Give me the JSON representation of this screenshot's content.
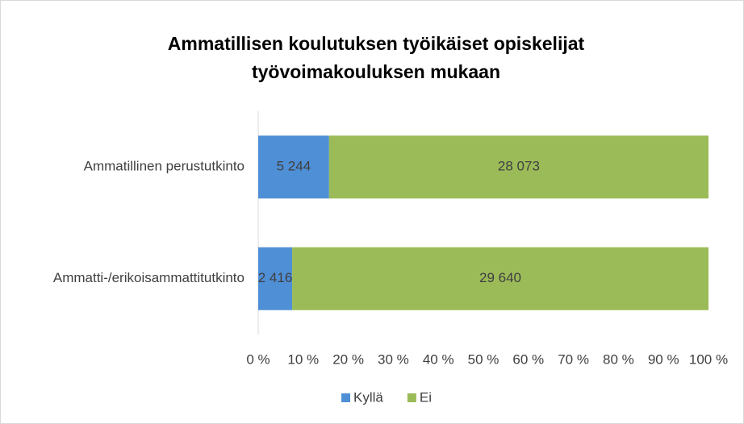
{
  "chart_data": {
    "type": "bar",
    "orientation": "horizontal",
    "stacked": "percent",
    "title": [
      "Ammatillisen koulutuksen työikäiset opiskelijat",
      "työvoimakouluksen mukaan"
    ],
    "categories": [
      "Ammatillinen perustutkinto",
      "Ammatti-/erikoisammattitutkinto"
    ],
    "series": [
      {
        "name": "Kyllä",
        "color": "#4f8fd6",
        "values": [
          5244,
          2416
        ],
        "value_labels": [
          "5 244",
          "2 416"
        ]
      },
      {
        "name": "Ei",
        "color": "#9bbb59",
        "values": [
          28073,
          29640
        ],
        "value_labels": [
          "28 073",
          "29 640"
        ]
      }
    ],
    "xlim": [
      0,
      100
    ],
    "xticks": [
      {
        "value": 0,
        "label": "0 %"
      },
      {
        "value": 10,
        "label": "10 %"
      },
      {
        "value": 20,
        "label": "20 %"
      },
      {
        "value": 30,
        "label": "30 %"
      },
      {
        "value": 40,
        "label": "40 %"
      },
      {
        "value": 50,
        "label": "50 %"
      },
      {
        "value": 60,
        "label": "60 %"
      },
      {
        "value": 70,
        "label": "70 %"
      },
      {
        "value": 80,
        "label": "80 %"
      },
      {
        "value": 90,
        "label": "90 %"
      },
      {
        "value": 100,
        "label": "100 %"
      }
    ],
    "legend": "bottom",
    "grid": false
  }
}
